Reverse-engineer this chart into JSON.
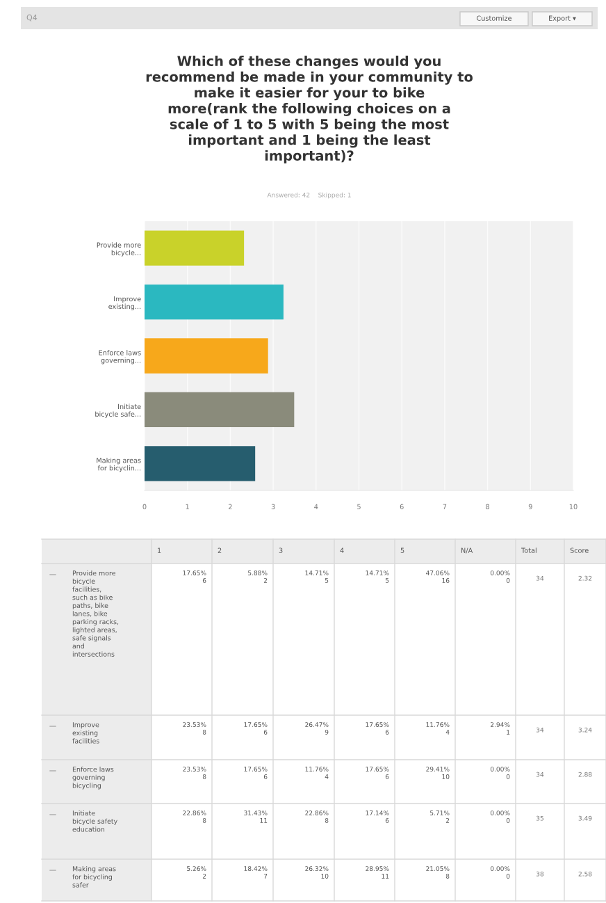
{
  "chart_data": {
    "type": "bar",
    "orientation": "horizontal",
    "title": "Which of these changes would you recommend be made in your community to make it easier for your to bike more(rank the following choices on a scale of 1 to 5 with 5 being the most important and 1 being the least important)?",
    "categories": [
      "Provide more bicycle...",
      "Improve existing...",
      "Enforce laws governing...",
      "Initiate bicycle safe...",
      "Making areas for bicyclin..."
    ],
    "values": [
      2.32,
      3.24,
      2.88,
      3.49,
      2.58
    ],
    "colors": [
      "#c9d22a",
      "#2bb8c0",
      "#f7a81b",
      "#8a8b7b",
      "#265d6e"
    ],
    "xlim": [
      0,
      10
    ],
    "xticks": [
      0,
      1,
      2,
      3,
      4,
      5,
      6,
      7,
      8,
      9,
      10
    ],
    "grid": "x",
    "annotations": [
      "Q4",
      "Customize",
      "Export ▾",
      "Answered: 42    Skipped: 1",
      "1",
      "2",
      "3",
      "4",
      "5",
      "N/A",
      "Total",
      "Score",
      "Provide more bicycle facilities, such as bike paths, bike lanes, bike parking racks, lighted areas, safe signals and intersections",
      "17.65%\n6",
      "5.88%\n2",
      "14.71%\n5",
      "14.71%\n5",
      "47.06%\n16",
      "0.00%\n0",
      "34",
      "2.32",
      "Improve existing facilities",
      "23.53%\n8",
      "17.65%\n6",
      "26.47%\n9",
      "17.65%\n6",
      "11.76%\n4",
      "2.94%\n1",
      "34",
      "3.24",
      "Enforce laws governing bicycling",
      "23.53%\n8",
      "17.65%\n6",
      "11.76%\n4",
      "17.65%\n6",
      "29.41%\n10",
      "0.00%\n0",
      "34",
      "2.88",
      "Initiate bicycle safety education",
      "22.86%\n8",
      "31.43%\n11",
      "22.86%\n8",
      "17.14%\n6",
      "5.71%\n2",
      "0.00%\n0",
      "35",
      "3.49",
      "Making areas for bicycling safer",
      "5.26%\n2",
      "18.42%\n7",
      "26.32%\n10",
      "28.95%\n11",
      "21.05%\n8",
      "0.00%\n0",
      "38",
      "2.58"
    ]
  }
}
